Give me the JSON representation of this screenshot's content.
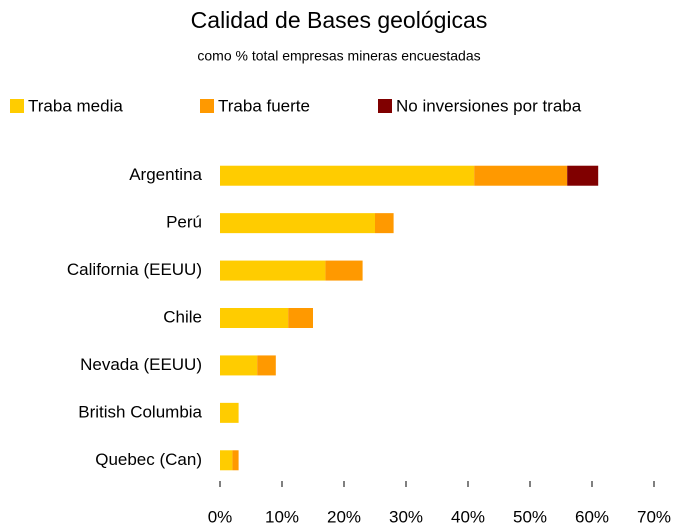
{
  "chart_data": {
    "type": "bar",
    "orientation": "horizontal",
    "stacked": true,
    "title": "Calidad de Bases geológicas",
    "subtitle": "como % total empresas mineras encuestadas",
    "categories": [
      "Argentina",
      "Perú",
      "California (EEUU)",
      "Chile",
      "Nevada (EEUU)",
      "British Columbia",
      "Quebec  (Can)"
    ],
    "series": [
      {
        "name": "Traba media",
        "color": "#ffcc00",
        "values": [
          41,
          25,
          17,
          11,
          6,
          3,
          2
        ]
      },
      {
        "name": "Traba fuerte",
        "color": "#ff9900",
        "values": [
          15,
          3,
          6,
          4,
          3,
          0,
          1
        ]
      },
      {
        "name": "No inversiones por traba",
        "color": "#800000",
        "values": [
          5,
          0,
          0,
          0,
          0,
          0,
          0
        ]
      }
    ],
    "xlim": [
      0,
      70
    ],
    "xticks": [
      {
        "value": 0,
        "label": "0%"
      },
      {
        "value": 10,
        "label": "10%"
      },
      {
        "value": 20,
        "label": "20%"
      },
      {
        "value": 30,
        "label": "30%"
      },
      {
        "value": 40,
        "label": "40%"
      },
      {
        "value": 50,
        "label": "50%"
      },
      {
        "value": 60,
        "label": "60%"
      },
      {
        "value": 70,
        "label": "70%"
      }
    ],
    "legend": "top",
    "grid": false
  }
}
